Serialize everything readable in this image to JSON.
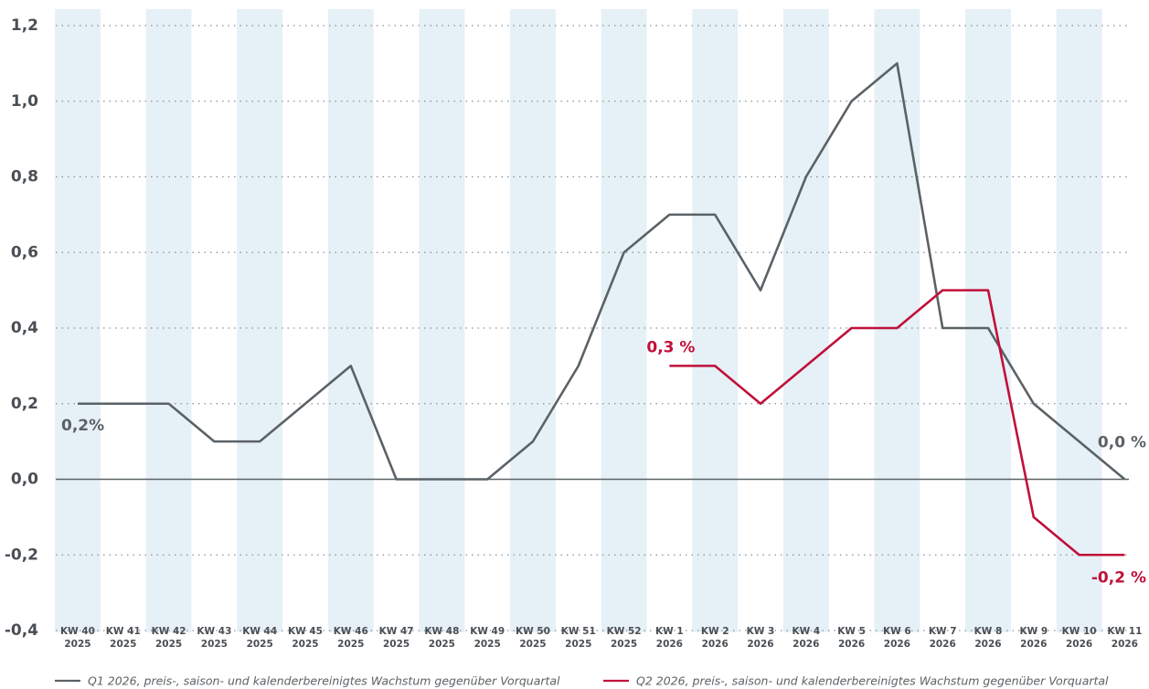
{
  "chart_data": {
    "type": "line",
    "categories": [
      "KW 40\n2025",
      "KW 41\n2025",
      "KW 42\n2025",
      "KW 43\n2025",
      "KW 44\n2025",
      "KW 45\n2025",
      "KW 46\n2025",
      "KW 47\n2025",
      "KW 48\n2025",
      "KW 49\n2025",
      "KW 50\n2025",
      "KW 51\n2025",
      "KW 52\n2025",
      "KW 1\n2026",
      "KW 2\n2026",
      "KW 3\n2026",
      "KW 4\n2026",
      "KW 5\n2026",
      "KW 6\n2026",
      "KW 7\n2026",
      "KW 8\n2026",
      "KW 9\n2026",
      "KW 10\n2026",
      "KW 11\n2026"
    ],
    "series": [
      {
        "name": "Q1 2026, preis-, saison- und kalenderbereinigtes Wachstum gegenüber Vorquartal",
        "color": "#5b6266",
        "values": [
          0.2,
          0.2,
          0.2,
          0.1,
          0.1,
          0.2,
          0.3,
          0.0,
          0.0,
          0.0,
          0.1,
          0.3,
          0.6,
          0.7,
          0.7,
          0.5,
          0.8,
          1.0,
          1.1,
          0.4,
          0.4,
          0.2,
          0.1,
          0.0
        ],
        "start_label": "0,2%",
        "end_label": "0,0 %"
      },
      {
        "name": "Q2 2026, preis-, saison- und kalenderbereinigtes Wachstum gegenüber Vorquartal",
        "color": "#c0103a",
        "values": [
          null,
          null,
          null,
          null,
          null,
          null,
          null,
          null,
          null,
          null,
          null,
          null,
          null,
          0.3,
          0.3,
          0.2,
          0.3,
          0.4,
          0.4,
          0.5,
          0.5,
          -0.1,
          -0.2,
          -0.2
        ],
        "start_label": "0,3 %",
        "end_label": "-0,2 %"
      }
    ],
    "ylim": [
      -0.4,
      1.2
    ],
    "yticks": [
      {
        "value": -0.4,
        "label": "-0,4"
      },
      {
        "value": -0.2,
        "label": "-0,2"
      },
      {
        "value": 0,
        "label": "0,0"
      },
      {
        "value": 0.2,
        "label": "0,2"
      },
      {
        "value": 0.4,
        "label": "0,4"
      },
      {
        "value": 0.6,
        "label": "0,6"
      },
      {
        "value": 0.8,
        "label": "0,8"
      },
      {
        "value": 1.0,
        "label": "1,0"
      },
      {
        "value": 1.2,
        "label": "1,2"
      }
    ],
    "grid": true,
    "band_color": "#e6f0f7",
    "legend": "bottom"
  }
}
